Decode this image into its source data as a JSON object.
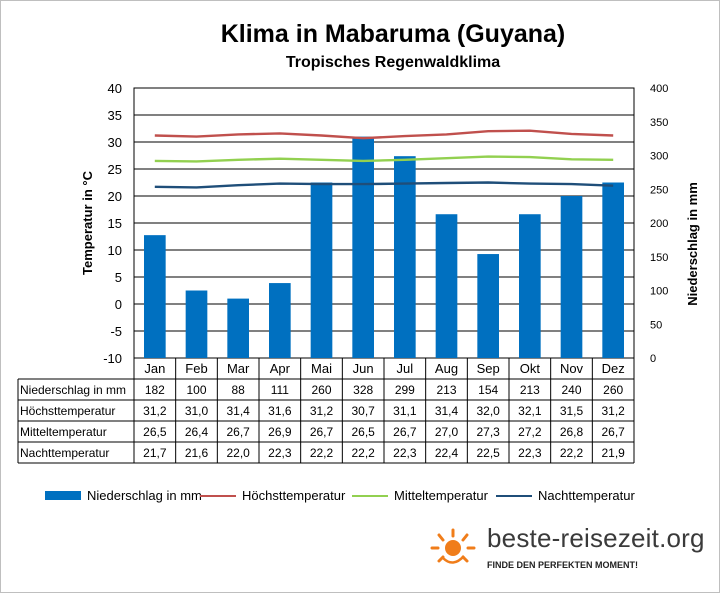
{
  "colors": {
    "precip": "#0070c0",
    "high": "#c0504d",
    "mean": "#92d050",
    "low": "#1f4e79",
    "logo_orange": "#f07d1a"
  },
  "chart_data": {
    "type": "bar",
    "title": "Klima in Mabaruma (Guyana)",
    "subtitle": "Tropisches Regenwaldklima",
    "ylabel": "Temperatur in °C",
    "ylabel_right": "Niederschlag in mm",
    "ylim": [
      -10,
      40
    ],
    "ylim_right": [
      0,
      400
    ],
    "yticks": [
      "40",
      "35",
      "30",
      "25",
      "20",
      "15",
      "10",
      "5",
      "0",
      "-5",
      "-10"
    ],
    "yticks_right": [
      "400",
      "350",
      "300",
      "250",
      "200",
      "150",
      "100",
      "50",
      "0"
    ],
    "categories": [
      "Jan",
      "Feb",
      "Mar",
      "Apr",
      "Mai",
      "Jun",
      "Jul",
      "Aug",
      "Sep",
      "Okt",
      "Nov",
      "Dez"
    ],
    "series": [
      {
        "name": "Niederschlag in mm",
        "type": "bar",
        "axis": "right",
        "values": [
          182,
          100,
          88,
          111,
          260,
          328,
          299,
          213,
          154,
          213,
          240,
          260
        ],
        "labels": [
          "182",
          "100",
          "88",
          "111",
          "260",
          "328",
          "299",
          "213",
          "154",
          "213",
          "240",
          "260"
        ]
      },
      {
        "name": "Höchsttemperatur",
        "type": "line",
        "axis": "left",
        "values": [
          31.2,
          31.0,
          31.4,
          31.6,
          31.2,
          30.7,
          31.1,
          31.4,
          32.0,
          32.1,
          31.5,
          31.2
        ],
        "labels": [
          "31,2",
          "31,0",
          "31,4",
          "31,6",
          "31,2",
          "30,7",
          "31,1",
          "31,4",
          "32,0",
          "32,1",
          "31,5",
          "31,2"
        ]
      },
      {
        "name": "Mitteltemperatur",
        "type": "line",
        "axis": "left",
        "values": [
          26.5,
          26.4,
          26.7,
          26.9,
          26.7,
          26.5,
          26.7,
          27.0,
          27.3,
          27.2,
          26.8,
          26.7
        ],
        "labels": [
          "26,5",
          "26,4",
          "26,7",
          "26,9",
          "26,7",
          "26,5",
          "26,7",
          "27,0",
          "27,3",
          "27,2",
          "26,8",
          "26,7"
        ]
      },
      {
        "name": "Nachttemperatur",
        "type": "line",
        "axis": "left",
        "values": [
          21.7,
          21.6,
          22.0,
          22.3,
          22.2,
          22.2,
          22.3,
          22.4,
          22.5,
          22.3,
          22.2,
          21.9
        ],
        "labels": [
          "21,7",
          "21,6",
          "22,0",
          "22,3",
          "22,2",
          "22,2",
          "22,3",
          "22,4",
          "22,5",
          "22,3",
          "22,2",
          "21,9"
        ]
      }
    ],
    "legend": "bottom",
    "grid": true
  },
  "logo": {
    "text": "beste-reisezeit.org",
    "tagline": "FINDE DEN PERFEKTEN MOMENT!"
  }
}
